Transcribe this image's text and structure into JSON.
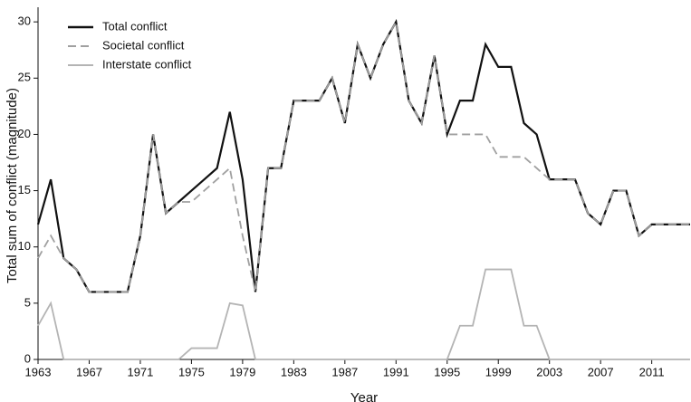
{
  "chart_data": {
    "type": "line",
    "x_label": "Year",
    "y_label": "Total sum of conflict (magnitude)",
    "x": [
      1963,
      1964,
      1965,
      1966,
      1967,
      1968,
      1969,
      1970,
      1971,
      1972,
      1973,
      1974,
      1975,
      1976,
      1977,
      1978,
      1979,
      1980,
      1981,
      1982,
      1983,
      1984,
      1985,
      1986,
      1987,
      1988,
      1989,
      1990,
      1991,
      1992,
      1993,
      1994,
      1995,
      1996,
      1997,
      1998,
      1999,
      2000,
      2001,
      2002,
      2003,
      2004,
      2005,
      2006,
      2007,
      2008,
      2009,
      2010,
      2011,
      2012,
      2013,
      2014
    ],
    "series": [
      {
        "name": "Total conflict",
        "color": "#111111",
        "dash": "solid",
        "values": [
          12,
          16,
          9,
          8,
          6,
          6,
          6,
          6,
          11,
          20,
          13,
          14,
          15,
          16,
          17,
          22,
          16,
          6,
          17,
          17,
          23,
          23,
          23,
          25,
          21,
          28,
          25,
          28,
          30,
          23,
          21,
          27,
          20,
          23,
          23,
          28,
          26,
          26,
          21,
          20,
          16,
          16,
          16,
          13,
          12,
          15,
          15,
          11,
          12,
          12,
          12,
          12
        ]
      },
      {
        "name": "Societal conflict",
        "color": "#a0a0a0",
        "dash": "dashed",
        "values": [
          9,
          11,
          9,
          8,
          6,
          6,
          6,
          6,
          11,
          20,
          13,
          14,
          14,
          15,
          16,
          17,
          11,
          6,
          17,
          17,
          23,
          23,
          23,
          25,
          21,
          28,
          25,
          28,
          30,
          23,
          21,
          27,
          20,
          20,
          20,
          20,
          18,
          18,
          18,
          17,
          16,
          16,
          16,
          13,
          12,
          15,
          15,
          11,
          12,
          12,
          12,
          12
        ]
      },
      {
        "name": "Interstate conflict",
        "color": "#b4b4b4",
        "dash": "solid",
        "values": [
          3,
          5,
          0,
          0,
          0,
          0,
          0,
          0,
          0,
          0,
          0,
          0,
          1,
          1,
          1,
          5,
          4.8,
          0,
          0,
          0,
          0,
          0,
          0,
          0,
          0,
          0,
          0,
          0,
          0,
          0,
          0,
          0,
          0,
          3,
          3,
          8,
          8,
          8,
          3,
          3,
          0,
          0,
          0,
          0,
          0,
          0,
          0,
          0,
          0,
          0,
          0,
          0
        ]
      }
    ],
    "xlim": [
      1963,
      2014
    ],
    "xticks": [
      1963,
      1967,
      1971,
      1975,
      1979,
      1983,
      1987,
      1991,
      1995,
      1999,
      2003,
      2007,
      2011
    ],
    "ylim": [
      0,
      31.3
    ],
    "yticks": [
      0,
      5,
      10,
      15,
      20,
      25,
      30
    ],
    "legend": "upper left"
  }
}
